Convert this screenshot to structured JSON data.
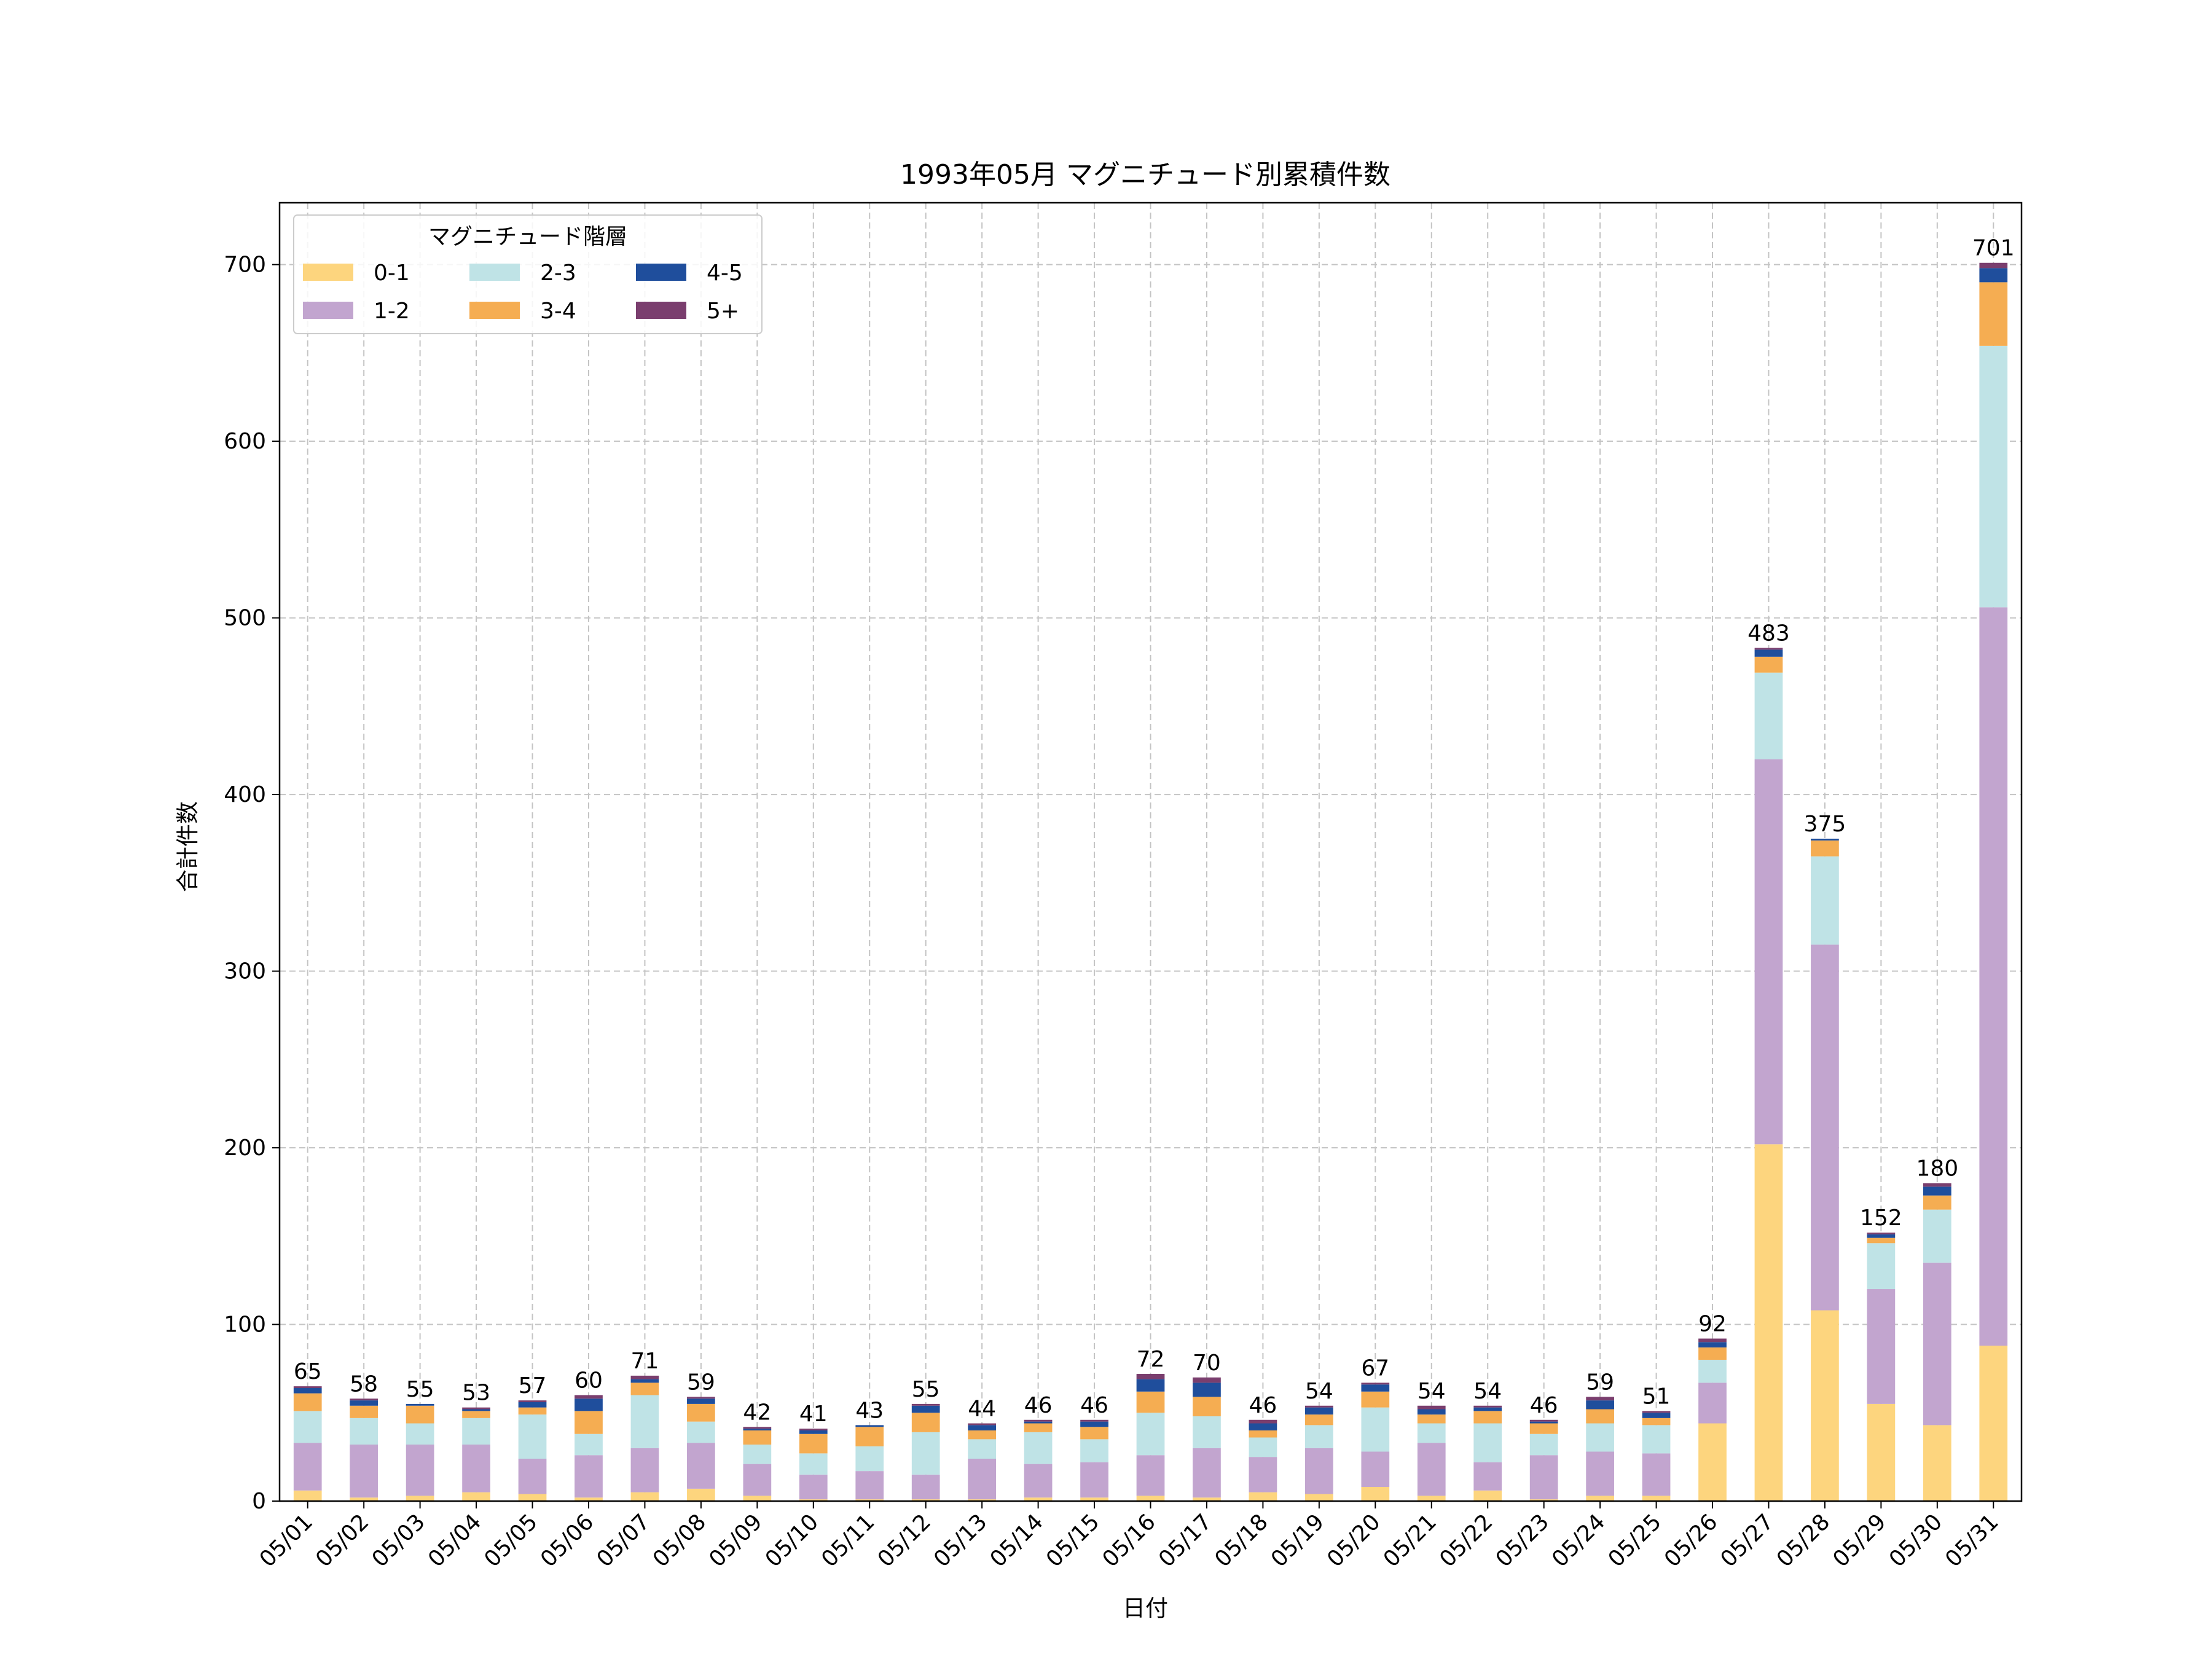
{
  "chart_data": {
    "type": "bar",
    "stacked": true,
    "title": "1993年05月 マグニチュード別累積件数",
    "xlabel": "日付",
    "ylabel": "合計件数",
    "ylim": [
      0,
      735
    ],
    "yticks": [
      0,
      100,
      200,
      300,
      400,
      500,
      600,
      700
    ],
    "grid": true,
    "legend": {
      "title": "マグニチュード階層",
      "placement": "top-left",
      "columns": 3
    },
    "categories": [
      "05/01",
      "05/02",
      "05/03",
      "05/04",
      "05/05",
      "05/06",
      "05/07",
      "05/08",
      "05/09",
      "05/10",
      "05/11",
      "05/12",
      "05/13",
      "05/14",
      "05/15",
      "05/16",
      "05/17",
      "05/18",
      "05/19",
      "05/20",
      "05/21",
      "05/22",
      "05/23",
      "05/24",
      "05/25",
      "05/26",
      "05/27",
      "05/28",
      "05/29",
      "05/30",
      "05/31"
    ],
    "series": [
      {
        "name": "0-1",
        "color": "#FDD57E",
        "values": [
          6,
          2,
          3,
          5,
          4,
          2,
          5,
          7,
          3,
          1,
          1,
          1,
          1,
          2,
          2,
          3,
          2,
          5,
          4,
          8,
          3,
          6,
          1,
          3,
          3,
          44,
          202,
          108,
          55,
          43,
          88
        ]
      },
      {
        "name": "1-2",
        "color": "#C2A5CF",
        "values": [
          27,
          30,
          29,
          27,
          20,
          24,
          25,
          26,
          18,
          14,
          16,
          14,
          23,
          19,
          20,
          23,
          28,
          20,
          26,
          20,
          30,
          16,
          25,
          25,
          24,
          23,
          218,
          207,
          65,
          92,
          418
        ]
      },
      {
        "name": "2-3",
        "color": "#BFE3E6",
        "values": [
          18,
          15,
          12,
          15,
          25,
          12,
          30,
          12,
          11,
          12,
          14,
          24,
          11,
          18,
          13,
          24,
          18,
          11,
          13,
          25,
          11,
          22,
          12,
          16,
          16,
          13,
          49,
          50,
          26,
          30,
          148
        ]
      },
      {
        "name": "3-4",
        "color": "#F5AD52",
        "values": [
          10,
          7,
          10,
          4,
          4,
          13,
          7,
          10,
          8,
          11,
          11,
          11,
          5,
          5,
          7,
          12,
          11,
          4,
          6,
          9,
          5,
          7,
          6,
          8,
          4,
          7,
          9,
          9,
          3,
          8,
          36
        ]
      },
      {
        "name": "4-5",
        "color": "#1F4E9C",
        "values": [
          3,
          3,
          1,
          1,
          3,
          7,
          2,
          3,
          1,
          2,
          1,
          4,
          3,
          1,
          3,
          7,
          8,
          4,
          4,
          4,
          3,
          2,
          1,
          5,
          3,
          3,
          4,
          1,
          2,
          5,
          8
        ]
      },
      {
        "name": "5+",
        "color": "#7A3E6E",
        "values": [
          1,
          1,
          0,
          1,
          1,
          2,
          2,
          1,
          1,
          1,
          0,
          1,
          1,
          1,
          1,
          3,
          3,
          2,
          1,
          1,
          2,
          1,
          1,
          2,
          1,
          2,
          1,
          0,
          1,
          2,
          3
        ]
      }
    ],
    "totals": [
      65,
      58,
      55,
      53,
      57,
      60,
      71,
      59,
      42,
      41,
      43,
      55,
      44,
      46,
      46,
      72,
      70,
      46,
      54,
      67,
      54,
      54,
      46,
      59,
      51,
      92,
      483,
      375,
      152,
      180,
      701
    ]
  }
}
